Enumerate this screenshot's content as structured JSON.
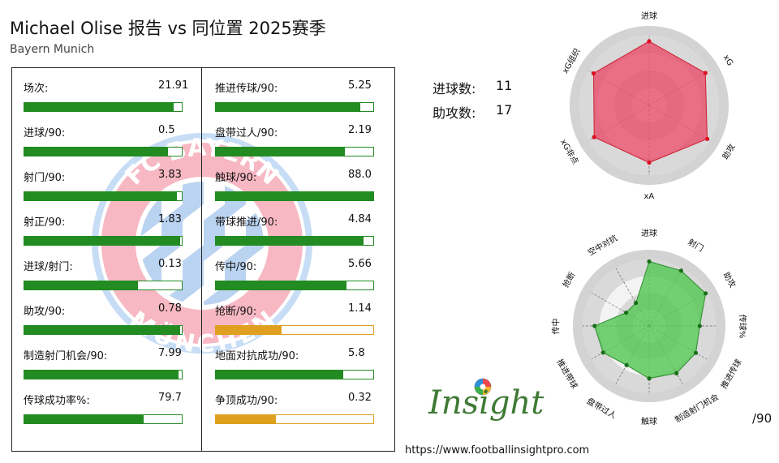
{
  "header": {
    "title": "Michael Olise 报告 vs 同位置 2025赛季",
    "subtitle": "Bayern Munich"
  },
  "crest": {
    "text_top": "FC BAYERN",
    "text_bottom": "MÜNCHEN"
  },
  "stats_left": [
    {
      "label": "场次:",
      "value": "21.91",
      "fill": 0.95,
      "color": "#228b22"
    },
    {
      "label": "进球/90:",
      "value": "0.5",
      "fill": 0.91,
      "color": "#228b22"
    },
    {
      "label": "射门/90:",
      "value": "3.83",
      "fill": 0.97,
      "color": "#228b22"
    },
    {
      "label": "射正/90:",
      "value": "1.83",
      "fill": 0.99,
      "color": "#228b22"
    },
    {
      "label": "进球/射门:",
      "value": "0.13",
      "fill": 0.72,
      "color": "#228b22"
    },
    {
      "label": "助攻/90:",
      "value": "0.78",
      "fill": 0.99,
      "color": "#228b22"
    },
    {
      "label": "制造射门机会/90:",
      "value": "7.99",
      "fill": 0.98,
      "color": "#228b22"
    },
    {
      "label": "传球成功率%:",
      "value": "79.7",
      "fill": 0.76,
      "color": "#228b22"
    }
  ],
  "stats_right": [
    {
      "label": "推进传球/90:",
      "value": "5.25",
      "fill": 0.92,
      "color": "#228b22"
    },
    {
      "label": "盘带过人/90:",
      "value": "2.19",
      "fill": 0.82,
      "color": "#228b22"
    },
    {
      "label": "触球/90:",
      "value": "88.0",
      "fill": 1.0,
      "color": "#228b22"
    },
    {
      "label": "带球推进/90:",
      "value": "4.84",
      "fill": 0.94,
      "color": "#228b22"
    },
    {
      "label": "传中/90:",
      "value": "5.66",
      "fill": 0.83,
      "color": "#228b22"
    },
    {
      "label": "抢断/90:",
      "value": "1.14",
      "fill": 0.42,
      "color": "#dfa01f"
    },
    {
      "label": "地面对抗成功/90:",
      "value": "5.8",
      "fill": 0.81,
      "color": "#228b22"
    },
    {
      "label": "争顶成功/90:",
      "value": "0.32",
      "fill": 0.38,
      "color": "#dfa01f"
    }
  ],
  "totals": [
    {
      "label": "进球数:",
      "value": "11"
    },
    {
      "label": "助攻数:",
      "value": "17"
    }
  ],
  "chart_data": [
    {
      "type": "radar",
      "axes": [
        "进球",
        "xG",
        "助攻",
        "xA",
        "xG非点",
        "xG组织"
      ],
      "values": [
        0.92,
        0.93,
        0.96,
        0.82,
        0.91,
        0.92
      ],
      "range": [
        0,
        1
      ],
      "color": "#e8506c"
    },
    {
      "type": "radar",
      "axes": [
        "进球",
        "射门",
        "助攻",
        "传球%",
        "推进传球",
        "制造射门机会",
        "触球",
        "盘带过人",
        "推进带球",
        "传中",
        "抢断",
        "空中对抗"
      ],
      "values": [
        0.97,
        0.96,
        0.98,
        0.76,
        0.81,
        0.82,
        0.79,
        0.68,
        0.8,
        0.82,
        0.4,
        0.4
      ],
      "range": [
        0,
        1
      ],
      "color": "#55c855"
    }
  ],
  "branding": {
    "logo_text": "Insight",
    "url": "https://www.footballinsightpro.com",
    "unit_note": "/90"
  }
}
